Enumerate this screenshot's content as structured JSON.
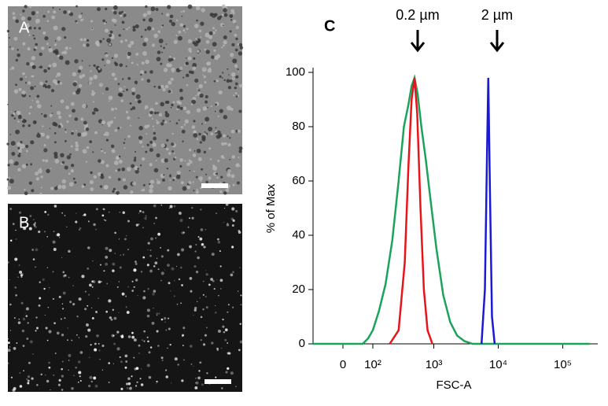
{
  "panels": [
    "A",
    "B",
    "C"
  ],
  "chart_data": {
    "type": "line",
    "x_label": "FSC-A",
    "y_label": "% of Max",
    "annotations": [
      "0.2 µm",
      "2 µm"
    ],
    "xscale": "biexponential",
    "xlim": [
      -100,
      262144
    ],
    "xticks": [
      0,
      {
        "value": 100,
        "label": "10²"
      },
      {
        "value": 1000,
        "label": "10³"
      },
      {
        "value": 10000,
        "label": "10⁴"
      },
      {
        "value": 100000,
        "label": "10⁵"
      }
    ],
    "ylim": [
      0,
      100
    ],
    "yticks": [
      0,
      20,
      40,
      60,
      80,
      100
    ],
    "series": [
      {
        "color": "#1aa35a",
        "x": [
          -100,
          60,
          80,
          100,
          130,
          170,
          220,
          280,
          340,
          400,
          450,
          500,
          560,
          640,
          750,
          900,
          1100,
          1400,
          1800,
          2300,
          3000,
          4000,
          262144
        ],
        "values": [
          0,
          0,
          2,
          5,
          12,
          22,
          38,
          60,
          80,
          88,
          95,
          98,
          92,
          80,
          68,
          52,
          35,
          18,
          8,
          3,
          1,
          0,
          0
        ]
      },
      {
        "color": "#e8141c",
        "x": [
          200,
          280,
          350,
          400,
          450,
          500,
          550,
          620,
          700,
          800,
          950
        ],
        "values": [
          0,
          5,
          30,
          65,
          90,
          98,
          85,
          50,
          20,
          5,
          0
        ]
      },
      {
        "color": "#1a1ad6",
        "x": [
          5500,
          6200,
          6700,
          7000,
          7400,
          8000,
          8800
        ],
        "values": [
          0,
          20,
          70,
          98,
          60,
          10,
          0
        ]
      }
    ]
  }
}
